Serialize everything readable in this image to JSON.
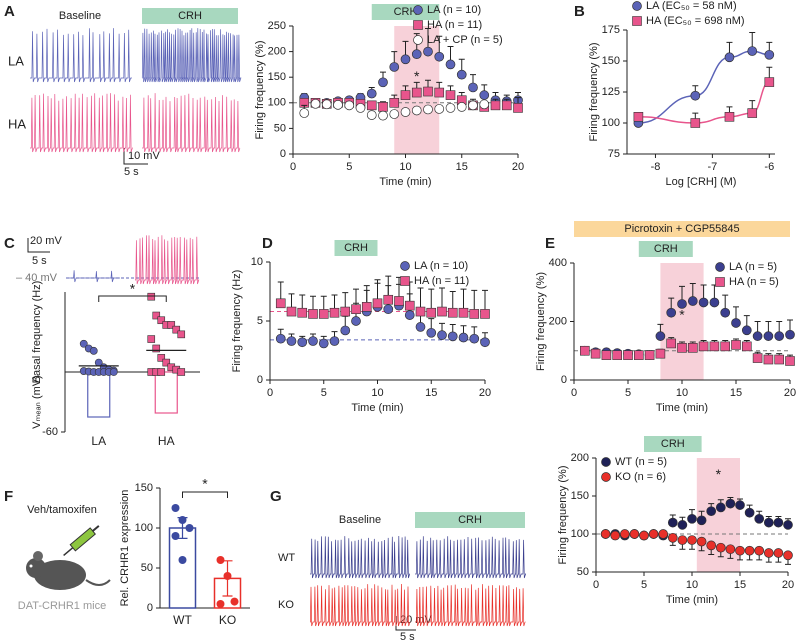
{
  "panel_letters": [
    "A",
    "B",
    "C",
    "D",
    "E",
    "F",
    "G"
  ],
  "traces": {
    "A": {
      "baseline": "Baseline",
      "treatment": "CRH",
      "rows": [
        "LA",
        "HA"
      ],
      "scale_v": "10 mV",
      "scale_t": "5 s"
    },
    "C": {
      "scale_v": "20 mV",
      "scale_t": "5 s",
      "level": "– 40 mV"
    },
    "F": {
      "treatment": "Veh/tamoxifen",
      "mouse": "DAT-CRHR1 mice"
    },
    "G": {
      "baseline": "Baseline",
      "treatment": "CRH",
      "rows": [
        "WT",
        "KO"
      ],
      "scale_v": "20 mV",
      "scale_t": "5 s"
    }
  },
  "chart_data": [
    {
      "type": "line",
      "xlabel": "Time (min)",
      "ylabel": "Firing frequency (%)",
      "x": [
        1,
        2,
        3,
        4,
        5,
        6,
        7,
        8,
        9,
        10,
        11,
        12,
        13,
        14,
        15,
        16,
        17,
        18,
        19,
        20
      ],
      "xlim": [
        0,
        20
      ],
      "xticks": [
        0,
        5,
        10,
        15,
        20
      ],
      "ylim": [
        0,
        250
      ],
      "yticks": [
        0,
        50,
        100,
        150,
        200,
        250
      ],
      "hlines": [
        {
          "value": 100,
          "color": "#777777"
        }
      ],
      "bars": [
        {
          "label": "CRH",
          "range": [
            7,
            13
          ],
          "color": "#a8d8bf"
        }
      ],
      "shade": [
        9,
        13
      ],
      "annotation": "*",
      "legend": "top-right",
      "series": [
        {
          "name": "LA (n = 10)",
          "color": "#5b63b7",
          "marker": "circle",
          "values": [
            110,
            100,
            100,
            103,
            105,
            110,
            118,
            140,
            170,
            185,
            195,
            200,
            190,
            175,
            155,
            130,
            115,
            105,
            103,
            105
          ],
          "errors": [
            8,
            5,
            5,
            5,
            6,
            8,
            12,
            20,
            30,
            35,
            40,
            45,
            40,
            35,
            30,
            25,
            20,
            15,
            12,
            15
          ]
        },
        {
          "name": "HA (n = 11)",
          "color": "#e8558c",
          "marker": "square",
          "values": [
            100,
            100,
            98,
            100,
            100,
            98,
            95,
            92,
            100,
            115,
            120,
            122,
            120,
            115,
            105,
            95,
            92,
            95,
            95,
            90
          ],
          "errors": [
            5,
            5,
            5,
            5,
            5,
            5,
            8,
            10,
            15,
            18,
            20,
            22,
            20,
            18,
            15,
            12,
            10,
            12,
            12,
            20
          ]
        },
        {
          "name": "LA + CP (n = 5)",
          "color": "#222222",
          "marker": "open-circle",
          "values": [
            80,
            98,
            97,
            96,
            95,
            90,
            76,
            75,
            78,
            82,
            85,
            87,
            88,
            90,
            92,
            95,
            97,
            null,
            null,
            null
          ],
          "errors": [
            15,
            5,
            5,
            5,
            5,
            5,
            5,
            5,
            5,
            5,
            5,
            5,
            5,
            5,
            5,
            5,
            5,
            null,
            null,
            null
          ]
        }
      ]
    },
    {
      "type": "line",
      "xlabel": "Log [CRH] (M)",
      "ylabel": "Firing frequency (%)",
      "fit_curve": true,
      "x": [
        -8.3,
        -7.3,
        -6.7,
        -6.3,
        -6
      ],
      "xlim": [
        -8.5,
        -5.9
      ],
      "xticks": [
        -8,
        -7,
        -6
      ],
      "ylim": [
        75,
        175
      ],
      "yticks": [
        75,
        100,
        125,
        150,
        175
      ],
      "legend": "top-left",
      "series": [
        {
          "name": "LA (EC₅₀ = 58 nM)",
          "color": "#5b63b7",
          "marker": "circle",
          "values": [
            100,
            122,
            153,
            158,
            155
          ],
          "errors": [
            3,
            8,
            12,
            15,
            10
          ]
        },
        {
          "name": "HA (EC₅₀ = 698 nM)",
          "color": "#e8558c",
          "marker": "square",
          "values": [
            105,
            100,
            105,
            108,
            133
          ],
          "errors": [
            3,
            8,
            8,
            10,
            12
          ]
        }
      ]
    },
    {
      "type": "strip",
      "ylabel": "Basal frequency (Hz)",
      "y2label": "Vₘₑₐₙ (mV)",
      "categories": [
        "LA",
        "HA"
      ],
      "colors": [
        "#5b63b7",
        "#e8558c"
      ],
      "strip": [
        [
          6,
          5,
          4.5,
          2,
          1,
          0.5,
          0.3,
          0.2,
          0.1,
          0,
          0,
          0,
          0,
          0
        ],
        [
          16,
          12,
          11,
          10,
          10,
          9,
          8,
          7,
          5,
          3,
          2,
          1,
          0.5,
          0,
          0,
          0,
          0
        ]
      ],
      "means": [
        1.3,
        4.6
      ],
      "vmean": [
        -45,
        -41
      ],
      "ylim": [
        0,
        17
      ],
      "y2lim": [
        -60,
        0
      ],
      "y2ticks": [
        -60
      ],
      "annotation": "*"
    },
    {
      "type": "line",
      "xlabel": "Time (min)",
      "ylabel": "Firing frequency (Hz)",
      "x": [
        1,
        2,
        3,
        4,
        5,
        6,
        7,
        8,
        9,
        10,
        11,
        12,
        13,
        14,
        15,
        16,
        17,
        18,
        19,
        20
      ],
      "xlim": [
        0,
        20
      ],
      "xticks": [
        0,
        5,
        10,
        15,
        20
      ],
      "ylim": [
        0,
        10
      ],
      "yticks": [
        0,
        5,
        10
      ],
      "hlines": [
        {
          "value": 5.8,
          "color": "#e8558c"
        },
        {
          "value": 3.4,
          "color": "#5b63b7"
        }
      ],
      "bars": [
        {
          "label": "CRH",
          "range": [
            6,
            10
          ],
          "color": "#a8d8bf"
        }
      ],
      "legend": "top-right",
      "series": [
        {
          "name": "LA (n = 10)",
          "color": "#5b63b7",
          "marker": "circle",
          "values": [
            3.5,
            3.3,
            3.2,
            3.3,
            3.1,
            3.3,
            4.2,
            5.0,
            5.8,
            6.2,
            6.0,
            6.3,
            5.5,
            4.5,
            4.0,
            3.8,
            3.7,
            3.6,
            3.5,
            3.2
          ],
          "errors": [
            0.8,
            0.6,
            0.5,
            0.6,
            0.6,
            0.8,
            1.2,
            1.5,
            1.8,
            2,
            2,
            1.8,
            1.8,
            1.5,
            1.2,
            1,
            1,
            1,
            1,
            0.8
          ]
        },
        {
          "name": "HA (n = 11)",
          "color": "#e8558c",
          "marker": "square",
          "values": [
            6.5,
            5.8,
            5.7,
            5.6,
            5.6,
            5.7,
            5.8,
            6.0,
            6.2,
            6.5,
            6.8,
            6.7,
            6.3,
            5.8,
            5.7,
            5.8,
            5.7,
            5.7,
            5.6,
            5.6
          ],
          "errors": [
            1.8,
            1.5,
            1.5,
            1.5,
            1.5,
            1.5,
            1.6,
            1.7,
            1.8,
            2,
            2,
            2,
            2,
            2,
            2,
            2,
            1.8,
            2,
            2,
            2
          ]
        }
      ]
    },
    {
      "type": "line",
      "xlabel": "Time (min)",
      "ylabel": "Firing frequency (%)",
      "x": [
        1,
        2,
        3,
        4,
        5,
        6,
        7,
        8,
        9,
        10,
        11,
        12,
        13,
        14,
        15,
        16,
        17,
        18,
        19,
        20
      ],
      "xlim": [
        0,
        20
      ],
      "xticks": [
        0,
        5,
        10,
        15,
        20
      ],
      "ylim": [
        0,
        400
      ],
      "yticks": [
        0,
        200,
        400
      ],
      "hlines": [
        {
          "value": 100,
          "color": "#777777"
        }
      ],
      "bars": [
        {
          "label": "Picrotoxin + CGP55845",
          "range": [
            0,
            20
          ],
          "color": "#fbd79b"
        },
        {
          "label": "CRH",
          "range": [
            6,
            11
          ],
          "color": "#a8d8bf"
        }
      ],
      "shade": [
        8,
        12
      ],
      "annotation": "*",
      "legend": "top-right",
      "series": [
        {
          "name": "LA (n = 5)",
          "color": "#3b3f8f",
          "marker": "circle",
          "values": [
            100,
            95,
            95,
            92,
            90,
            88,
            85,
            150,
            230,
            260,
            270,
            265,
            265,
            230,
            195,
            170,
            150,
            150,
            150,
            155
          ],
          "errors": [
            10,
            10,
            10,
            10,
            10,
            10,
            15,
            40,
            50,
            60,
            60,
            60,
            60,
            60,
            55,
            50,
            50,
            50,
            50,
            50
          ]
        },
        {
          "name": "HA (n = 5)",
          "color": "#e8558c",
          "marker": "square",
          "values": [
            100,
            90,
            85,
            85,
            85,
            85,
            85,
            90,
            125,
            110,
            110,
            115,
            115,
            115,
            120,
            115,
            75,
            70,
            70,
            65
          ],
          "errors": [
            10,
            10,
            10,
            10,
            10,
            10,
            10,
            15,
            20,
            20,
            20,
            20,
            20,
            20,
            20,
            20,
            20,
            20,
            20,
            20
          ]
        }
      ]
    },
    {
      "type": "dotbar",
      "ylabel": "Rel. CRHR1 expression",
      "categories": [
        "WT",
        "KO"
      ],
      "colors": [
        "#3b4aa0",
        "#e8302a"
      ],
      "values": [
        100,
        37
      ],
      "errors": [
        13,
        22
      ],
      "points": [
        [
          125,
          110,
          100,
          90,
          60
        ],
        [
          60,
          40,
          8,
          5
        ]
      ],
      "ylim": [
        0,
        150
      ],
      "yticks": [
        0,
        50,
        100,
        150
      ],
      "annotation": "*"
    },
    {
      "type": "line",
      "xlabel": "Time (min)",
      "ylabel": "Firing frequency (%)",
      "x": [
        1,
        2,
        3,
        4,
        5,
        6,
        7,
        8,
        9,
        10,
        11,
        12,
        13,
        14,
        15,
        16,
        17,
        18,
        19,
        20
      ],
      "xlim": [
        0,
        20
      ],
      "xticks": [
        0,
        5,
        10,
        15,
        20
      ],
      "ylim": [
        50,
        200
      ],
      "yticks": [
        50,
        100,
        150,
        200
      ],
      "hlines": [
        {
          "value": 100,
          "color": "#777777"
        }
      ],
      "bars": [
        {
          "label": "CRH",
          "range": [
            5,
            11
          ],
          "color": "#a8d8bf"
        }
      ],
      "shade": [
        10.5,
        15
      ],
      "annotation": "*",
      "legend": "top-left",
      "series": [
        {
          "name": "WT (n = 5)",
          "color": "#1f2157",
          "marker": "circle",
          "error_dir": "up",
          "values": [
            100,
            100,
            98,
            100,
            98,
            100,
            98,
            115,
            112,
            120,
            118,
            130,
            135,
            140,
            138,
            128,
            120,
            115,
            115,
            112
          ],
          "errors": [
            3,
            3,
            3,
            3,
            3,
            3,
            3,
            10,
            10,
            12,
            12,
            10,
            10,
            8,
            8,
            10,
            10,
            8,
            8,
            8
          ]
        },
        {
          "name": "KO (n = 6)",
          "color": "#e8302a",
          "marker": "circle",
          "error_dir": "down",
          "values": [
            100,
            98,
            100,
            100,
            98,
            100,
            100,
            95,
            92,
            92,
            90,
            85,
            82,
            80,
            78,
            78,
            78,
            75,
            75,
            72
          ],
          "errors": [
            3,
            3,
            3,
            3,
            3,
            3,
            3,
            10,
            12,
            12,
            12,
            12,
            12,
            12,
            12,
            12,
            12,
            12,
            12,
            12
          ]
        }
      ]
    }
  ]
}
